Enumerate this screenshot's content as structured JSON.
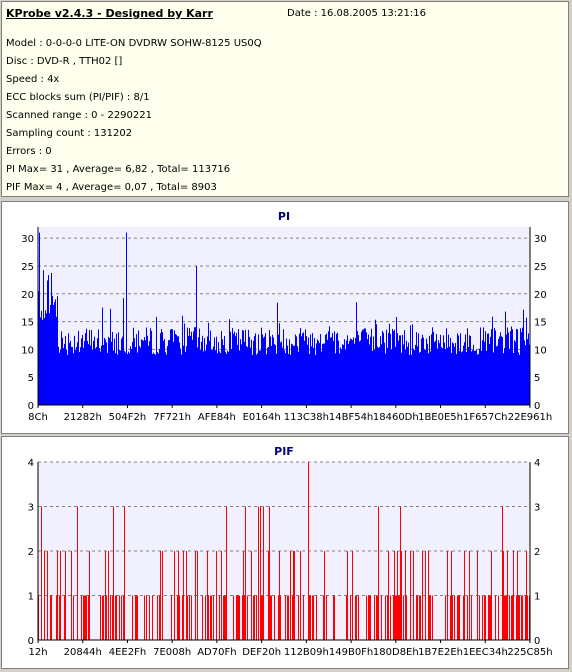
{
  "header": {
    "title": "KProbe v2.4.3 - Designed by Karr",
    "date": "Date : 16.08.2005 13:21:16"
  },
  "info_lines": [
    "Model : 0-0-0-0 LITE-ON DVDRW SOHW-8125  US0Q",
    "Disc : DVD-R , TTH02 []",
    "Speed : 4x",
    "ECC blocks sum (PI/PIF) : 8/1",
    "Scanned range : 0 - 2290221",
    "Sampling count : 131202",
    "Errors : 0",
    "PI Max= 31 , Average= 6,82 , Total= 113716",
    "PIF Max= 4 , Average= 0,07 , Total= 8903"
  ],
  "chart_data": [
    {
      "type": "bar",
      "title": "PI",
      "color": "#0000ff",
      "ylim": [
        0,
        32
      ],
      "yticks": [
        0,
        5,
        10,
        15,
        20,
        25,
        30
      ],
      "xticks": [
        "8Ch",
        "21282h",
        "504F2h",
        "7F721h",
        "AFE84h",
        "E0164h",
        "113C38h",
        "14BF54h",
        "18460Dh",
        "1BE0E5h",
        "1F657Ch",
        "22E961h"
      ],
      "max": 31,
      "average": 6.82,
      "grid": true
    },
    {
      "type": "bar",
      "title": "PIF",
      "color": "#ff0000",
      "ylim": [
        0,
        4
      ],
      "yticks": [
        0,
        1,
        2,
        3,
        4
      ],
      "xticks": [
        "12h",
        "20844h",
        "4EE2Fh",
        "7E008h",
        "AD70Fh",
        "DEF20h",
        "112B09h",
        "149B0Fh",
        "180D8Eh",
        "1B7E2Eh",
        "1EEC34h",
        "225C85h"
      ],
      "max": 4,
      "average": 0.07,
      "grid": true
    }
  ]
}
